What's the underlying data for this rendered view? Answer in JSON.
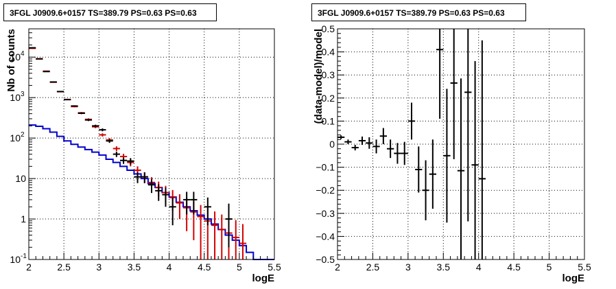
{
  "chart_data": [
    {
      "type": "histogram",
      "title": "3FGL J0909.6+0157 TS=389.79 PS=0.63 PS=0.63",
      "xlabel": "logE",
      "ylabel": "Nb of counts",
      "xlim": [
        2,
        5.5
      ],
      "ylim": [
        0.1,
        50000
      ],
      "yscale": "log",
      "grid": true,
      "x_ticks": [
        "2",
        "2.5",
        "3",
        "3.5",
        "4",
        "4.5",
        "5",
        "5.5"
      ],
      "y_ticks": [
        {
          "value": 0.1,
          "base": "10",
          "exp": "-1"
        },
        {
          "value": 1,
          "base": "1",
          "exp": ""
        },
        {
          "value": 10,
          "base": "10",
          "exp": ""
        },
        {
          "value": 100,
          "base": "10",
          "exp": "2"
        },
        {
          "value": 1000,
          "base": "10",
          "exp": "3"
        },
        {
          "value": 10000,
          "base": "10",
          "exp": "4"
        }
      ],
      "colors": {
        "data": "#000000",
        "model": "#d40000",
        "background": "#0000cc"
      },
      "series": [
        {
          "name": "",
          "style": "blue-step",
          "x": [
            2.0,
            2.1,
            2.2,
            2.3,
            2.4,
            2.5,
            2.6,
            2.7,
            2.8,
            2.9,
            3.0,
            3.1,
            3.2,
            3.3,
            3.4,
            3.5,
            3.6,
            3.7,
            3.8,
            3.9,
            4.0,
            4.1,
            4.2,
            4.3,
            4.4,
            4.5,
            4.6,
            4.7,
            4.8,
            4.9,
            5.0,
            5.1,
            5.2,
            5.3,
            5.4
          ],
          "y": [
            210,
            195,
            170,
            140,
            110,
            85,
            70,
            60,
            52,
            45,
            38,
            30,
            25,
            20,
            16,
            13,
            10,
            7.5,
            6,
            4.5,
            3.5,
            2.6,
            2.0,
            1.6,
            1.25,
            1.0,
            0.75,
            0.55,
            0.4,
            0.3,
            0.22,
            0.15,
            0.1,
            0.1,
            0.1
          ]
        },
        {
          "name": "",
          "style": "red-error-bars",
          "x": [
            2.05,
            2.15,
            2.25,
            2.35,
            2.45,
            2.55,
            2.65,
            2.75,
            2.85,
            2.95,
            3.05,
            3.15,
            3.25,
            3.35,
            3.45,
            3.55,
            3.65,
            3.75,
            3.85,
            3.95,
            4.05,
            4.15,
            4.25,
            4.35,
            4.45,
            4.55,
            4.65,
            4.75,
            4.85,
            4.95,
            5.05
          ],
          "y": [
            16500,
            9000,
            4500,
            2400,
            1400,
            900,
            600,
            420,
            290,
            190,
            120,
            90,
            55,
            35,
            25,
            16,
            11,
            8,
            6,
            4.5,
            3.4,
            2.5,
            1.9,
            1.5,
            1.15,
            0.9,
            0.7,
            0.55,
            0.45,
            0.35,
            0.25
          ],
          "yerr_low": [
            130,
            95,
            67,
            49,
            37,
            30,
            24,
            20,
            17,
            14,
            11,
            9.5,
            7.4,
            5.9,
            5,
            4,
            3.3,
            2.8,
            2.4,
            2.1,
            1.8,
            1.5,
            1.4,
            1.2,
            1.07,
            0.9,
            0.7,
            0.55,
            0.45,
            0.35,
            0.25
          ],
          "yerr_high": [
            130,
            95,
            67,
            49,
            37,
            30,
            24,
            20,
            17,
            14,
            11,
            9.5,
            7.4,
            5.9,
            5,
            4,
            3.3,
            2.8,
            2.4,
            2.1,
            1.8,
            1.6,
            1.4,
            1.2,
            1.07,
            0.95,
            0.84,
            0.74,
            0.67,
            0.59,
            0.5
          ]
        },
        {
          "name": "",
          "style": "black-error-bars",
          "x": [
            2.05,
            2.15,
            2.25,
            2.35,
            2.45,
            2.55,
            2.65,
            2.75,
            2.85,
            2.95,
            3.05,
            3.15,
            3.25,
            3.35,
            3.45,
            3.55,
            3.65,
            3.75,
            3.85,
            3.95,
            4.05,
            4.25,
            4.35,
            4.55,
            4.85
          ],
          "y": [
            17000,
            9100,
            4400,
            2430,
            1410,
            890,
            620,
            410,
            280,
            200,
            160,
            85,
            40,
            28,
            27,
            11,
            11,
            7,
            5,
            4,
            2,
            3,
            3,
            2,
            1
          ],
          "yerr_low": [
            130,
            95,
            66,
            49,
            38,
            30,
            25,
            20,
            17,
            14,
            13,
            9,
            6,
            5,
            5,
            3.3,
            3.3,
            2.6,
            2.2,
            2,
            1.3,
            1.7,
            1.7,
            1.3,
            0.8
          ],
          "yerr_high": [
            130,
            95,
            66,
            49,
            38,
            30,
            25,
            20,
            17,
            14,
            13,
            9,
            6,
            5,
            5,
            3.3,
            3.3,
            2.6,
            2.2,
            2,
            1.4,
            1.7,
            1.7,
            1.4,
            1.4
          ]
        }
      ]
    },
    {
      "type": "scatter",
      "title": "3FGL J0909.6+0157 TS=389.79 PS=0.63 PS=0.63",
      "xlabel": "logE",
      "ylabel": "(data-model)/model",
      "xlim": [
        2,
        5.5
      ],
      "ylim": [
        -0.5,
        0.5
      ],
      "grid": true,
      "x_ticks": [
        "2",
        "2.5",
        "3",
        "3.5",
        "4",
        "4.5",
        "5",
        "5.5"
      ],
      "y_ticks": [
        "−0.5",
        "−0.4",
        "−0.3",
        "−0.2",
        "−0.1",
        "0",
        "0.1",
        "0.2",
        "0.3",
        "0.4",
        "0.5"
      ],
      "series": [
        {
          "name": "",
          "x": [
            2.05,
            2.15,
            2.25,
            2.35,
            2.45,
            2.55,
            2.65,
            2.75,
            2.85,
            2.95,
            3.05,
            3.15,
            3.25,
            3.35,
            3.45,
            3.55,
            3.65,
            3.75,
            3.85,
            3.95,
            4.05
          ],
          "y": [
            0.03,
            0.01,
            -0.015,
            0.015,
            0.005,
            -0.01,
            0.035,
            -0.02,
            -0.04,
            -0.04,
            0.1,
            -0.11,
            -0.2,
            -0.13,
            0.41,
            -0.05,
            0.265,
            -0.115,
            0.225,
            -0.09,
            -0.15
          ],
          "yerr": [
            0.008,
            0.01,
            0.012,
            0.018,
            0.025,
            0.03,
            0.035,
            0.04,
            0.045,
            0.05,
            0.08,
            0.1,
            0.13,
            0.15,
            0.3,
            0.29,
            0.33,
            0.4,
            0.56,
            0.45,
            0.6
          ]
        }
      ]
    }
  ]
}
